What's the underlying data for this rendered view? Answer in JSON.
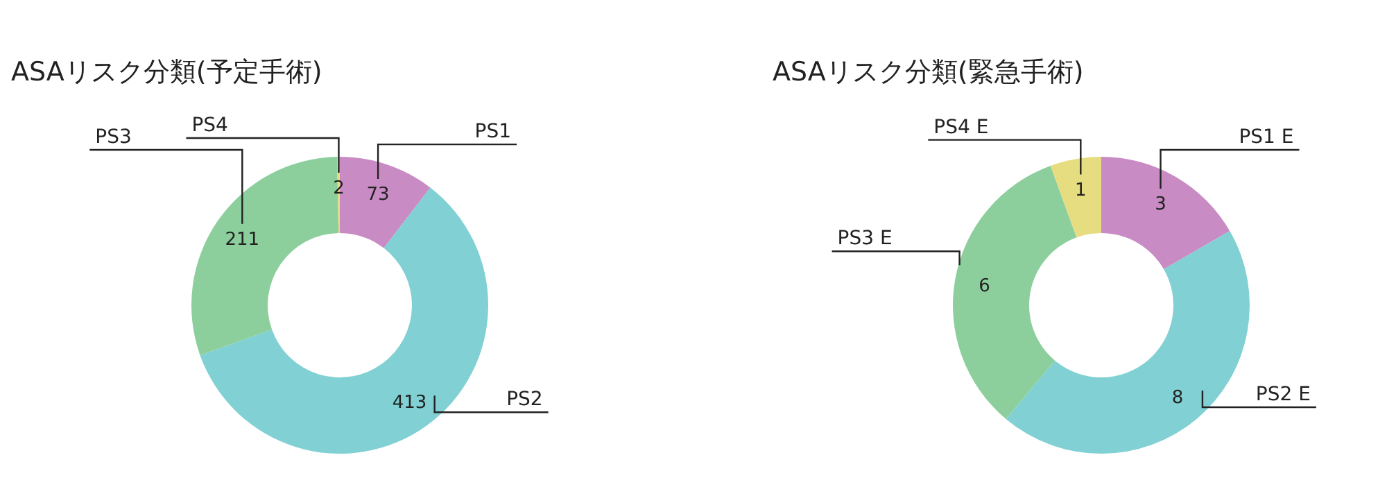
{
  "chart_data": [
    {
      "type": "donut",
      "title": "ASAリスク分類(予定手術)",
      "categories": [
        "PS1",
        "PS2",
        "PS3",
        "PS4"
      ],
      "values": [
        73,
        413,
        211,
        2
      ],
      "colors": [
        "#c98bc4",
        "#80d0d4",
        "#8ccf9c",
        "#e6dc80"
      ],
      "data_labels": true
    },
    {
      "type": "donut",
      "title": "ASAリスク分類(緊急手術)",
      "categories": [
        "PS1 E",
        "PS2 E",
        "PS3 E",
        "PS4 E"
      ],
      "values": [
        3,
        8,
        6,
        1
      ],
      "colors": [
        "#c98bc4",
        "#80d0d4",
        "#8ccf9c",
        "#e6dc80"
      ],
      "data_labels": true
    }
  ]
}
